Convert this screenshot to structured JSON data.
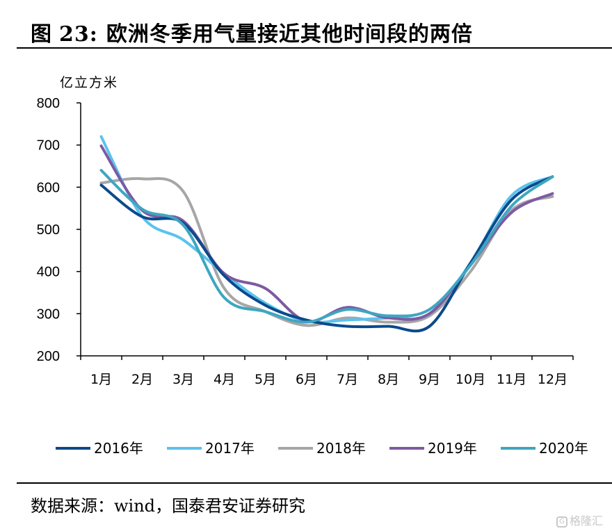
{
  "header": {
    "fig_label": "图",
    "fig_number": "23:",
    "title": "欧洲冬季用气量接近其他时间段的两倍"
  },
  "footer": {
    "source": "数据来源：wind，国泰君安证券研究",
    "watermark": "格隆汇"
  },
  "chart_data": {
    "type": "line",
    "title": "欧洲冬季用气量接近其他时间段的两倍",
    "ylabel": "亿立方米",
    "xlabel": "",
    "ylim": [
      200,
      800
    ],
    "yticks": [
      200,
      300,
      400,
      500,
      600,
      700,
      800
    ],
    "categories": [
      "1月",
      "2月",
      "3月",
      "4月",
      "5月",
      "6月",
      "7月",
      "8月",
      "9月",
      "10月",
      "11月",
      "12月"
    ],
    "grid": false,
    "legend_position": "bottom",
    "series": [
      {
        "name": "2016年",
        "color": "#0b4a8c",
        "values": [
          605,
          530,
          515,
          390,
          320,
          285,
          270,
          270,
          270,
          420,
          570,
          625
        ]
      },
      {
        "name": "2017年",
        "color": "#5bc2ee",
        "values": [
          720,
          530,
          475,
          395,
          325,
          282,
          285,
          290,
          300,
          420,
          580,
          625
        ]
      },
      {
        "name": "2018年",
        "color": "#a6a6a6",
        "values": [
          610,
          620,
          590,
          360,
          305,
          272,
          290,
          280,
          295,
          400,
          545,
          578
        ]
      },
      {
        "name": "2019年",
        "color": "#7e5aa2",
        "values": [
          698,
          545,
          520,
          395,
          360,
          282,
          315,
          290,
          300,
          415,
          540,
          585
        ]
      },
      {
        "name": "2020年",
        "color": "#3fa6c1",
        "values": [
          640,
          548,
          510,
          338,
          305,
          280,
          310,
          295,
          310,
          415,
          555,
          625
        ]
      }
    ]
  }
}
